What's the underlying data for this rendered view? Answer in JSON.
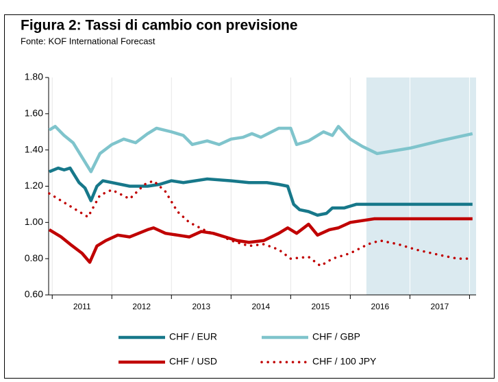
{
  "chart_data": {
    "type": "line",
    "title": "Figura 2: Tassi di cambio con previsione",
    "subtitle": "Fonte: KOF International Forecast",
    "categories": [
      "2011",
      "2012",
      "2013",
      "2014",
      "2015",
      "2016",
      "2017"
    ],
    "xticks": [
      2011,
      2012,
      2013,
      2014,
      2015,
      2016,
      2017,
      2018
    ],
    "xlim": [
      2010.94,
      2018.11
    ],
    "ylim": [
      0.6,
      1.8
    ],
    "yticks": [
      {
        "value": 0.6,
        "label": "0.60"
      },
      {
        "value": 0.8,
        "label": "0.80"
      },
      {
        "value": 1.0,
        "label": "1.00"
      },
      {
        "value": 1.2,
        "label": "1.20"
      },
      {
        "value": 1.4,
        "label": "1.40"
      },
      {
        "value": 1.6,
        "label": "1.60"
      },
      {
        "value": 1.8,
        "label": "1.80"
      }
    ],
    "forecast_start": 2016.27,
    "forecast_color": "#dbeaf0",
    "series": [
      {
        "name": "CHF / EUR",
        "color": "#17788a",
        "style": "solid",
        "x": [
          2010.95,
          2011.1,
          2011.2,
          2011.3,
          2011.45,
          2011.55,
          2011.65,
          2011.75,
          2011.85,
          2012.0,
          2012.3,
          2012.6,
          2012.8,
          2013.0,
          2013.2,
          2013.6,
          2014.0,
          2014.3,
          2014.6,
          2014.8,
          2014.95,
          2015.05,
          2015.15,
          2015.3,
          2015.45,
          2015.6,
          2015.7,
          2015.9,
          2016.1,
          2016.5,
          2017.0,
          2017.5,
          2018.05
        ],
        "values": [
          1.28,
          1.3,
          1.29,
          1.3,
          1.22,
          1.19,
          1.12,
          1.2,
          1.23,
          1.22,
          1.2,
          1.2,
          1.21,
          1.23,
          1.22,
          1.24,
          1.23,
          1.22,
          1.22,
          1.21,
          1.2,
          1.1,
          1.07,
          1.06,
          1.04,
          1.05,
          1.08,
          1.08,
          1.1,
          1.1,
          1.1,
          1.1,
          1.1
        ]
      },
      {
        "name": "CHF / GBP",
        "color": "#7fc4cc",
        "style": "solid",
        "x": [
          2010.95,
          2011.05,
          2011.2,
          2011.35,
          2011.5,
          2011.65,
          2011.8,
          2012.0,
          2012.2,
          2012.4,
          2012.6,
          2012.75,
          2013.0,
          2013.2,
          2013.35,
          2013.6,
          2013.8,
          2014.0,
          2014.2,
          2014.35,
          2014.5,
          2014.8,
          2015.0,
          2015.1,
          2015.3,
          2015.55,
          2015.7,
          2015.8,
          2016.0,
          2016.2,
          2016.45,
          2017.0,
          2017.5,
          2018.05
        ],
        "values": [
          1.51,
          1.53,
          1.48,
          1.44,
          1.36,
          1.28,
          1.38,
          1.43,
          1.46,
          1.44,
          1.49,
          1.52,
          1.5,
          1.48,
          1.43,
          1.45,
          1.43,
          1.46,
          1.47,
          1.49,
          1.47,
          1.52,
          1.52,
          1.43,
          1.45,
          1.5,
          1.48,
          1.53,
          1.46,
          1.42,
          1.38,
          1.41,
          1.45,
          1.49
        ]
      },
      {
        "name": "CHF / USD",
        "color": "#c00000",
        "style": "solid",
        "x": [
          2010.95,
          2011.15,
          2011.3,
          2011.5,
          2011.63,
          2011.75,
          2011.9,
          2012.1,
          2012.3,
          2012.6,
          2012.7,
          2012.9,
          2013.1,
          2013.3,
          2013.5,
          2013.7,
          2013.9,
          2014.1,
          2014.3,
          2014.55,
          2014.8,
          2014.95,
          2015.1,
          2015.3,
          2015.45,
          2015.65,
          2015.8,
          2016.0,
          2016.2,
          2016.4,
          2017.0,
          2017.5,
          2018.05
        ],
        "values": [
          0.96,
          0.92,
          0.88,
          0.83,
          0.78,
          0.87,
          0.9,
          0.93,
          0.92,
          0.96,
          0.97,
          0.94,
          0.93,
          0.92,
          0.95,
          0.94,
          0.92,
          0.9,
          0.89,
          0.9,
          0.94,
          0.97,
          0.94,
          0.99,
          0.93,
          0.96,
          0.97,
          1.0,
          1.01,
          1.02,
          1.02,
          1.02,
          1.02
        ]
      },
      {
        "name": "CHF / 100 JPY",
        "color": "#c00000",
        "style": "dotted",
        "x": [
          2010.95,
          2011.15,
          2011.35,
          2011.6,
          2011.8,
          2012.0,
          2012.3,
          2012.55,
          2012.7,
          2012.9,
          2013.1,
          2013.3,
          2013.6,
          2013.8,
          2014.0,
          2014.3,
          2014.55,
          2014.8,
          2015.0,
          2015.3,
          2015.5,
          2015.7,
          2016.0,
          2016.3,
          2016.5,
          2016.8,
          2017.1,
          2017.5,
          2017.8,
          2018.05
        ],
        "values": [
          1.16,
          1.12,
          1.08,
          1.03,
          1.15,
          1.18,
          1.13,
          1.21,
          1.23,
          1.17,
          1.06,
          1.0,
          0.95,
          0.93,
          0.9,
          0.87,
          0.88,
          0.85,
          0.8,
          0.81,
          0.76,
          0.8,
          0.83,
          0.88,
          0.9,
          0.88,
          0.85,
          0.82,
          0.8,
          0.8
        ]
      }
    ]
  }
}
